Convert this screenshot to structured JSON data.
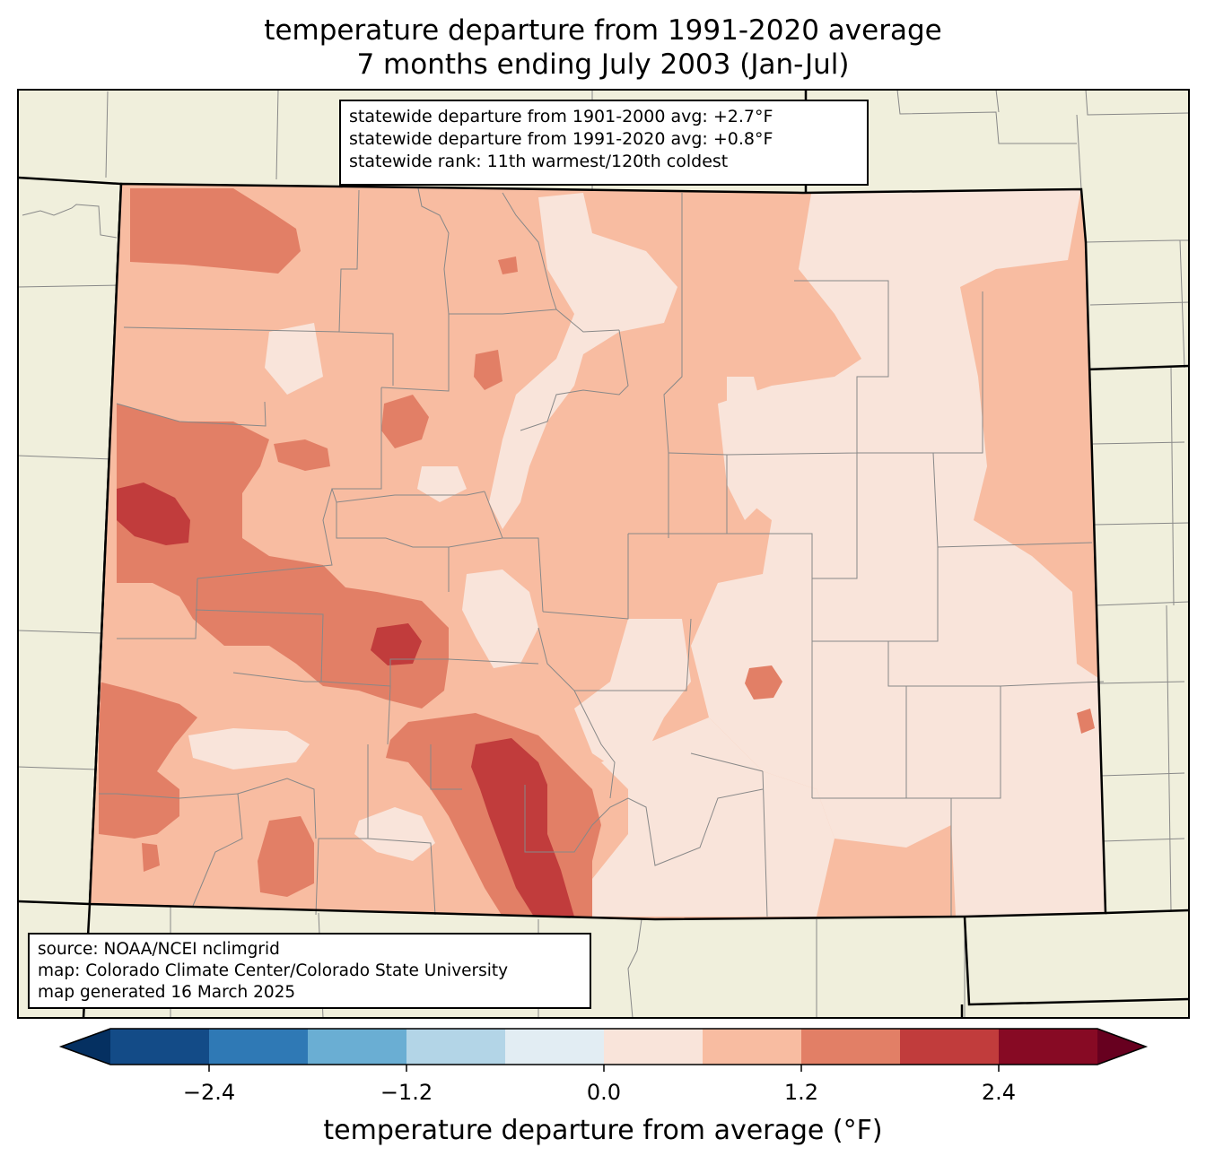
{
  "title": {
    "line1": "temperature departure from 1991-2020 average",
    "line2": "7 months ending July 2003 (Jan-Jul)"
  },
  "stats": {
    "line1": "statewide departure from 1901-2000 avg: +2.7°F",
    "line2": "statewide departure from 1991-2020 avg: +0.8°F",
    "line3": "statewide rank: 11th warmest/120th coldest"
  },
  "credits": {
    "line1": "source: NOAA/NCEI nclimgrid",
    "line2": "map: Colorado Climate Center/Colorado State University",
    "line3": "map generated 16 March 2025"
  },
  "colorbar": {
    "label": "temperature departure from average (°F)",
    "ticks": [
      "−2.4",
      "−1.2",
      "0.0",
      "1.2",
      "2.4"
    ],
    "colors": [
      "#053061",
      "#134b87",
      "#2f79b5",
      "#6aaed3",
      "#b3d5e7",
      "#e2edf3",
      "#f9e4da",
      "#f8bca1",
      "#e27f66",
      "#c13c3c",
      "#870a24",
      "#67001f"
    ]
  },
  "map_colors": {
    "background": "#f0efdc",
    "lvl_0_6": "#f9e4da",
    "lvl_0_6_1_2": "#f8bca1",
    "lvl_1_2_1_8": "#e27f66",
    "lvl_1_8_2_4": "#c13c3c",
    "lvl_2_4_3_0": "#870a24"
  }
}
